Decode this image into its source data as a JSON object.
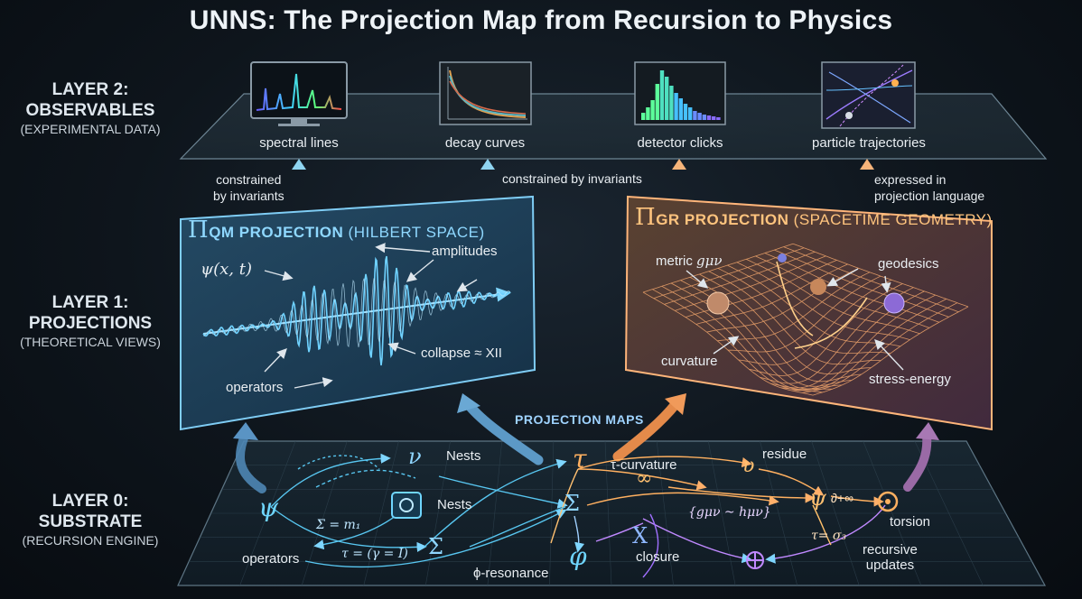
{
  "title": "UNNS: The Projection Map from Recursion to Physics",
  "layers": {
    "l2": {
      "name_line1": "LAYER 2:",
      "name_line2": "OBSERVABLES",
      "sub": "(EXPERIMENTAL DATA)"
    },
    "l1": {
      "name_line1": "LAYER 1:",
      "name_line2": "PROJECTIONS",
      "sub": "(THEORETICAL VIEWS)"
    },
    "l0": {
      "name_line1": "LAYER 0:",
      "name_line2": "SUBSTRATE",
      "sub": "(RECURSION ENGINE)"
    }
  },
  "observables": [
    "spectral lines",
    "decay curves",
    "detector clicks",
    "particle trajectories"
  ],
  "connectors": {
    "constrained_a_line1": "constrained",
    "constrained_a_line2": "by invariants",
    "constrained_b": "constrained by invariants",
    "expressed_line1": "expressed in",
    "expressed_line2": "projection language",
    "projection_maps": "PROJECTION MAPS"
  },
  "qm_panel": {
    "pi": "Π",
    "title_main": "QM PROJECTION",
    "title_paren": "(HILBERT SPACE)",
    "psi": "ψ(x, t)",
    "amplitudes": "amplitudes",
    "collapse": "collapse ≈ XII",
    "operators": "operators"
  },
  "gr_panel": {
    "pi": "Π",
    "title_main": "GR PROJECTION",
    "title_paren": "(SPACETIME GEOMETRY)",
    "metric": "metric",
    "metric_sym": "gμν",
    "geodesics": "geodesics",
    "curvature": "curvature",
    "stress_energy": "stress-energy"
  },
  "substrate": {
    "nests_top": "Nests",
    "nests_mid": "Nests",
    "tau_curvature": "τ-curvature",
    "residue": "residue",
    "torsion": "torsion",
    "recursive_line1": "recursive",
    "recursive_line2": "updates",
    "operators": "operators",
    "phi_resonance": "ϕ-resonance",
    "closure": "closure",
    "eq_sigma": "Σ = m₁",
    "eq_tau": "τ = (γ = I)",
    "eq_metric": "{gμν ~ hμν}",
    "eq_tau_sigma": "τ= σ₃",
    "eq_delta": "∂+∞",
    "sym_psi": "ψ",
    "sym_nu": "ν",
    "sym_tau": "τ",
    "sym_sigma_a": "Σ",
    "sym_sigma_b": "Σ",
    "sym_phi": "φ",
    "sym_x": "X",
    "sym_inf": "∞",
    "sym_oplus": "⊕",
    "sym_odot": "⊙",
    "sym_psi2": "ψ",
    "sym_upsilon": "υ"
  },
  "colors": {
    "qm_accent": "#5ac8ff",
    "gr_accent": "#ff9a3c",
    "cyan_arrow": "#79c7e6",
    "orange_arrow": "#f0a060",
    "purple_arrow": "#b58bd6"
  }
}
